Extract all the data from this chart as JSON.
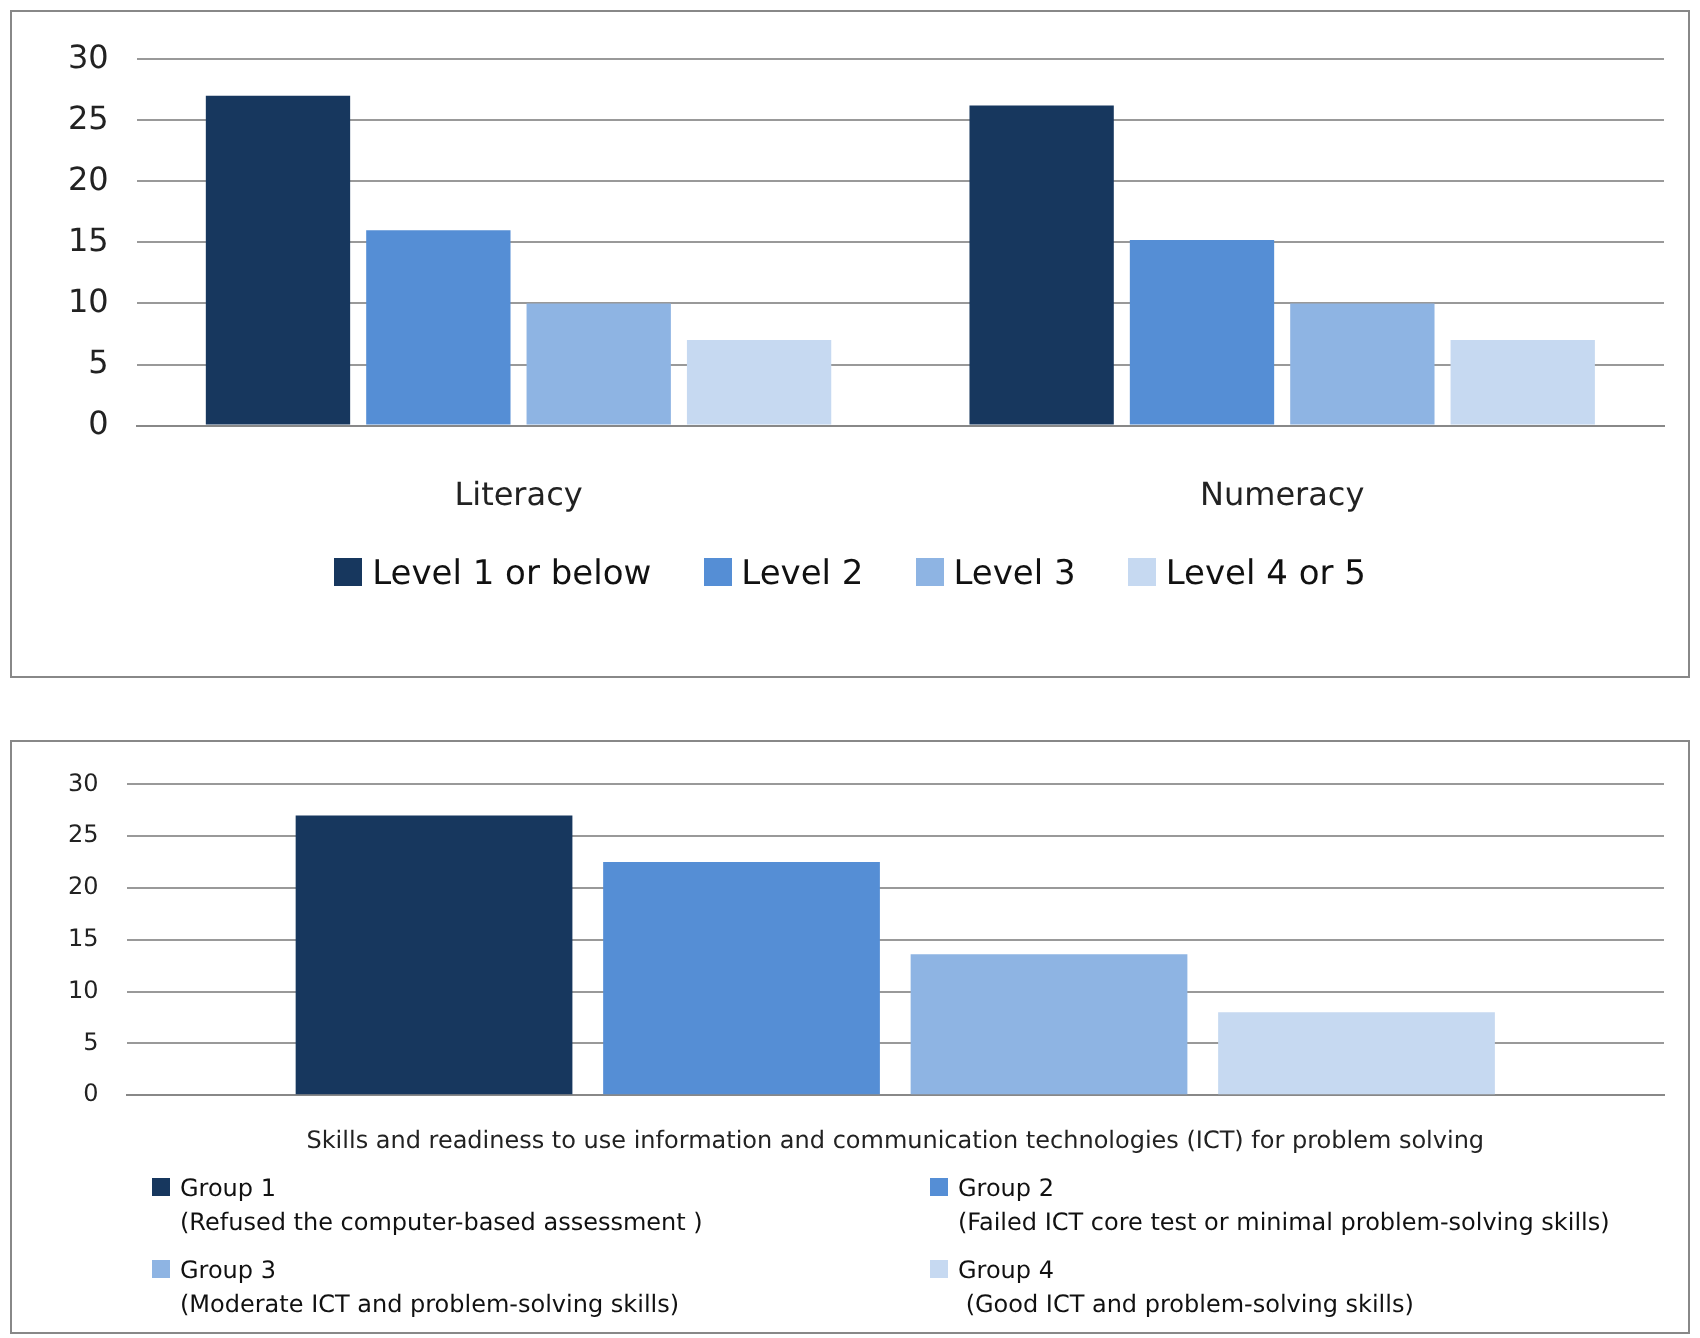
{
  "chart_data": [
    {
      "type": "bar",
      "categories": [
        "Literacy",
        "Numeracy"
      ],
      "ylim": [
        0,
        30
      ],
      "yticks": [
        0,
        5,
        10,
        15,
        20,
        25,
        30
      ],
      "grid": "y",
      "legend": "bottom",
      "series": [
        {
          "name": "Level 1 or below",
          "color": "#17375e",
          "values": [
            27,
            26.2
          ]
        },
        {
          "name": "Level 2",
          "color": "#558ed5",
          "values": [
            16,
            15.2
          ]
        },
        {
          "name": "Level 3",
          "color": "#8eb4e3",
          "values": [
            10,
            10
          ]
        },
        {
          "name": "Level 4 or 5",
          "color": "#c6d9f1",
          "values": [
            7,
            7
          ]
        }
      ]
    },
    {
      "type": "bar",
      "categories": [
        "Skills and readiness to use information and communication technologies (ICT) for problem solving"
      ],
      "ylim": [
        0,
        30
      ],
      "yticks": [
        0,
        5,
        10,
        15,
        20,
        25,
        30
      ],
      "grid": "y",
      "legend": "bottom",
      "series": [
        {
          "name": "Group 1\n(Refused the computer-based assessment )",
          "color": "#17375e",
          "values": [
            27
          ]
        },
        {
          "name": "Group 2\n(Failed ICT core test or minimal problem-solving skills)",
          "color": "#558ed5",
          "values": [
            22.5
          ]
        },
        {
          "name": "Group 3\n(Moderate ICT and problem-solving skills)",
          "color": "#8eb4e3",
          "values": [
            13.6
          ]
        },
        {
          "name": "Group 4\n (Good ICT and problem-solving skills)",
          "color": "#c6d9f1",
          "values": [
            8
          ]
        }
      ]
    }
  ]
}
